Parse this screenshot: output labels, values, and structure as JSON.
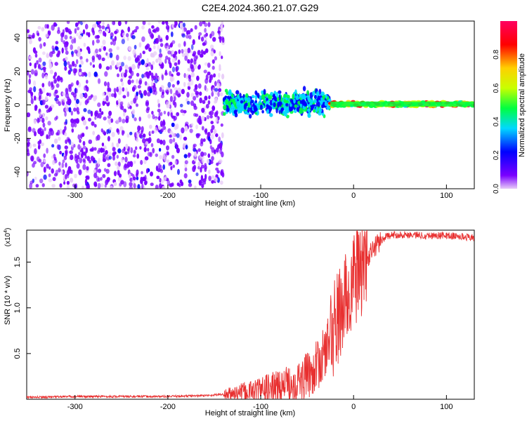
{
  "title": "C2E4.2024.360.21.07.G29",
  "chart_data": [
    {
      "type": "heatmap",
      "xlabel": "Height of straight line (km)",
      "ylabel": "Frequency (Hz)",
      "xlim": [
        -352,
        130
      ],
      "ylim": [
        -50,
        50
      ],
      "xticks": [
        -300,
        -200,
        -100,
        0,
        100
      ],
      "yticks": [
        -40,
        -20,
        0,
        20,
        40
      ],
      "colorbar": {
        "label": "Normalized spectral amplitude",
        "range": [
          0,
          1
        ],
        "ticks": [
          "0.0",
          "0.2",
          "0.4",
          "0.6",
          "0.8"
        ],
        "colors": [
          "#e8ccf8",
          "#7a00ff",
          "#0000ff",
          "#00d8ff",
          "#00ff40",
          "#c8ff00",
          "#ffd000",
          "#ff0000",
          "#ff0060"
        ]
      },
      "regions": [
        {
          "name": "noise",
          "x": [
            -352,
            -140
          ],
          "freq": [
            -50,
            50
          ],
          "amplitude": [
            0.02,
            0.2
          ]
        },
        {
          "name": "transition",
          "x": [
            -140,
            -25
          ],
          "freq": [
            -15,
            12
          ],
          "amplitude": [
            0.2,
            0.5
          ]
        },
        {
          "name": "tone",
          "x": [
            -25,
            130
          ],
          "freq": [
            -1,
            2
          ],
          "amplitude": [
            0.4,
            0.95
          ]
        }
      ]
    },
    {
      "type": "line",
      "xlabel": "Height of straight line (km)",
      "ylabel": "SNR (10 * v/v)",
      "scale_label": "(x10",
      "scale_exponent": "4",
      "xlim": [
        -352,
        130
      ],
      "ylim": [
        0,
        1.85
      ],
      "xticks": [
        -300,
        -200,
        -100,
        0,
        100
      ],
      "yticks": [
        "0.5",
        "1.0",
        "1.5"
      ],
      "color": "#e83030",
      "series": [
        {
          "x": [
            -352,
            -300,
            -250,
            -200,
            -160,
            -130,
            -110,
            -90,
            -70,
            -55,
            -45,
            -35,
            -28,
            -20,
            -12,
            -5,
            0,
            5,
            10,
            15,
            20,
            25,
            30,
            35,
            45,
            60,
            80,
            100,
            115,
            130
          ],
          "y": [
            0.02,
            0.03,
            0.03,
            0.03,
            0.04,
            0.06,
            0.09,
            0.12,
            0.16,
            0.22,
            0.3,
            0.42,
            0.6,
            0.8,
            1.0,
            1.15,
            1.3,
            1.4,
            1.45,
            1.55,
            1.62,
            1.7,
            1.74,
            1.78,
            1.8,
            1.8,
            1.79,
            1.79,
            1.78,
            1.77
          ]
        }
      ]
    }
  ]
}
